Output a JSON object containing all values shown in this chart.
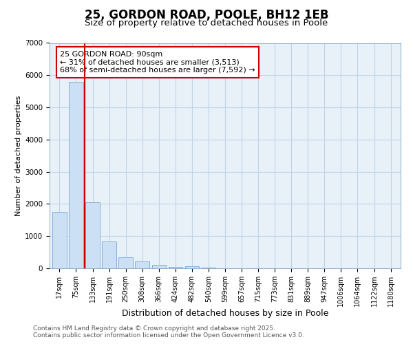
{
  "title1": "25, GORDON ROAD, POOLE, BH12 1EB",
  "title2": "Size of property relative to detached houses in Poole",
  "xlabel": "Distribution of detached houses by size in Poole",
  "ylabel": "Number of detached properties",
  "categories": [
    "17sqm",
    "75sqm",
    "133sqm",
    "191sqm",
    "250sqm",
    "308sqm",
    "366sqm",
    "424sqm",
    "482sqm",
    "540sqm",
    "599sqm",
    "657sqm",
    "715sqm",
    "773sqm",
    "831sqm",
    "889sqm",
    "947sqm",
    "1006sqm",
    "1064sqm",
    "1122sqm",
    "1180sqm"
  ],
  "values": [
    1750,
    5800,
    2050,
    830,
    350,
    210,
    110,
    40,
    70,
    15,
    10,
    5,
    3,
    0,
    0,
    0,
    0,
    0,
    0,
    0,
    0
  ],
  "bar_color": "#cce0f5",
  "bar_edge_color": "#6699cc",
  "vline_color": "#cc0000",
  "vline_pos": 1.5,
  "annotation_text": "25 GORDON ROAD: 90sqm\n← 31% of detached houses are smaller (3,513)\n68% of semi-detached houses are larger (7,592) →",
  "annotation_box_color": "#cc0000",
  "annotation_bg": "#ffffff",
  "ylim": [
    0,
    7000
  ],
  "yticks": [
    0,
    1000,
    2000,
    3000,
    4000,
    5000,
    6000,
    7000
  ],
  "grid_color": "#c0d4e8",
  "bg_color": "#e8f0f8",
  "footer1": "Contains HM Land Registry data © Crown copyright and database right 2025.",
  "footer2": "Contains public sector information licensed under the Open Government Licence v3.0.",
  "title1_fontsize": 12,
  "title2_fontsize": 9.5,
  "xlabel_fontsize": 9,
  "ylabel_fontsize": 8,
  "tick_fontsize": 7,
  "annotation_fontsize": 8,
  "footer_fontsize": 6.5
}
